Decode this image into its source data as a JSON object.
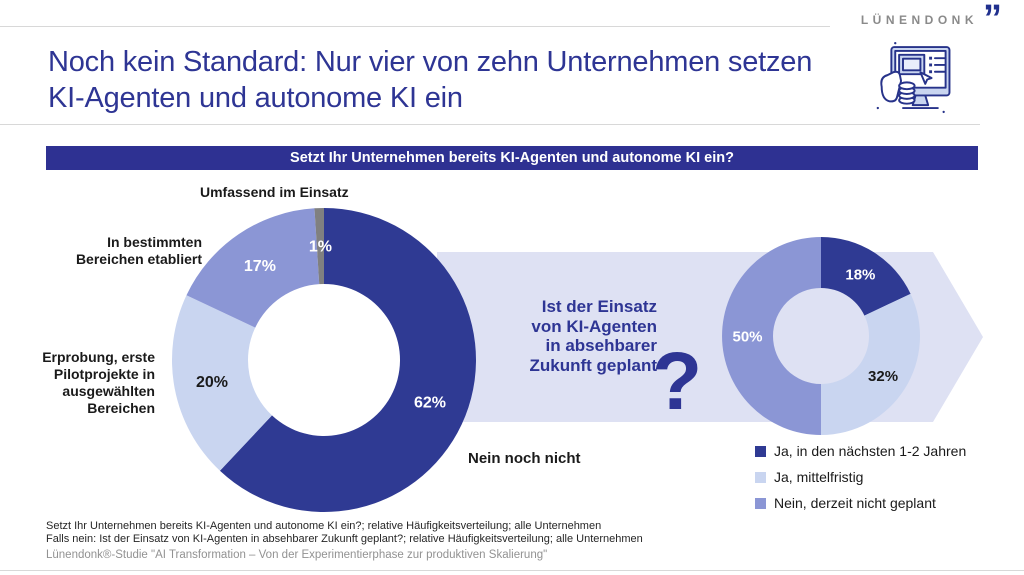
{
  "brand": {
    "logo_text": "LÜNENDONK",
    "logo_quote_glyph": "”",
    "accent_dark_blue": "#2e3594",
    "band_lavender": "#dee1f3"
  },
  "header": {
    "title": "Noch kein Standard: Nur vier von zehn Unternehmen setzen\nKI-Agenten und autonome KI ein"
  },
  "banner": {
    "text": "Setzt Ihr Unternehmen bereits KI-Agenten und autonome KI ein?"
  },
  "middle": {
    "question": "Ist der Einsatz\nvon KI-Agenten\nin absehbarer\nZukunft geplant",
    "question_mark": "?"
  },
  "chart_data": [
    {
      "type": "pie",
      "variant": "donut",
      "title": "Setzt Ihr Unternehmen bereits KI-Agenten und autonome KI ein?",
      "units": "%",
      "start_angle_deg": 0,
      "direction": "clockwise",
      "slices": [
        {
          "label": "Nein noch nicht",
          "value": 62,
          "color": "#2f3a93",
          "value_label_color": "#ffffff"
        },
        {
          "label": "Erprobung, erste Pilotprojekte in ausgewählten Bereichen",
          "value": 20,
          "color": "#c9d5f0",
          "value_label_color": "#1a1a1a"
        },
        {
          "label": "In bestimmten Bereichen etabliert",
          "value": 17,
          "color": "#8b96d5",
          "value_label_color": "#ffffff"
        },
        {
          "label": "Umfassend im Einsatz",
          "value": 1,
          "color": "#808080",
          "value_label_color": "#ffffff"
        }
      ]
    },
    {
      "type": "pie",
      "variant": "donut",
      "title": "Ist der Einsatz von KI-Agenten in absehbarer Zukunft geplant?",
      "units": "%",
      "start_angle_deg": 0,
      "direction": "clockwise",
      "slices": [
        {
          "label": "Ja, in den nächsten 1-2 Jahren",
          "value": 18,
          "color": "#2f3a93",
          "value_label_color": "#ffffff"
        },
        {
          "label": "Ja, mittelfristig",
          "value": 32,
          "color": "#c9d5f0",
          "value_label_color": "#1a1a1a"
        },
        {
          "label": "Nein, derzeit nicht geplant",
          "value": 50,
          "color": "#8b96d5",
          "value_label_color": "#ffffff"
        }
      ]
    }
  ],
  "footnotes": {
    "line1": "Setzt Ihr Unternehmen bereits KI-Agenten und autonome KI ein?; relative Häufigkeitsverteilung; alle Unternehmen",
    "line2": "Falls nein: Ist der Einsatz von KI-Agenten in absehbarer Zukunft geplant?; relative Häufigkeitsverteilung; alle Unternehmen"
  },
  "source": "Lünendonk®-Studie \"AI Transformation – Von der Experimentierphase zur produktiven Skalierung\""
}
